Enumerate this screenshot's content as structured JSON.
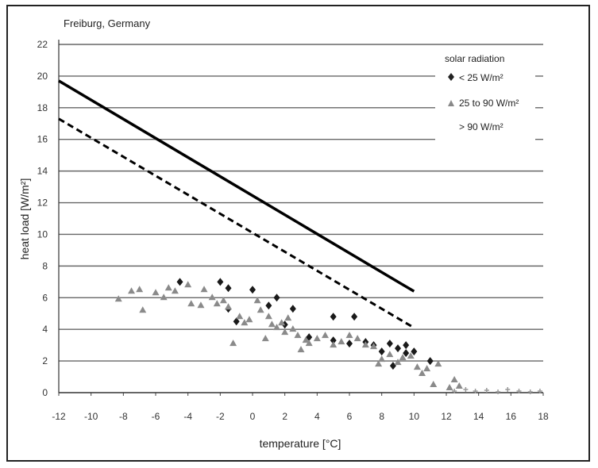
{
  "chart_data": {
    "type": "scatter",
    "title": "Freiburg, Germany",
    "xlabel": "temperature [°C]",
    "ylabel": "heat load [W/m²]",
    "xlim": [
      -12,
      18
    ],
    "ylim": [
      0,
      22
    ],
    "x_ticks": [
      "-12",
      "-10",
      "-8",
      "-6",
      "-4",
      "-2",
      "0",
      "2",
      "4",
      "6",
      "8",
      "10",
      "12",
      "14",
      "16",
      "18"
    ],
    "y_ticks": [
      "0",
      "2",
      "4",
      "6",
      "8",
      "10",
      "12",
      "14",
      "16",
      "18",
      "20",
      "22"
    ],
    "grid": "horizontal",
    "legend": {
      "title": "solar radiation",
      "placement": "top-right",
      "entries": [
        "< 25 W/m²",
        "25 to 90 W/m²",
        "> 90 W/m²"
      ]
    },
    "lines": [
      {
        "style": "solid",
        "x": [
          -12,
          10
        ],
        "y": [
          19.7,
          6.4
        ]
      },
      {
        "style": "dashed",
        "x": [
          -12,
          10
        ],
        "y": [
          17.3,
          4.1
        ]
      }
    ],
    "series": [
      {
        "name": "< 25 W/m²",
        "marker": "diamond",
        "points": [
          [
            -4.5,
            7.0
          ],
          [
            -2.0,
            7.0
          ],
          [
            -1.5,
            6.6
          ],
          [
            0,
            6.5
          ],
          [
            -1.5,
            5.3
          ],
          [
            -1.0,
            4.5
          ],
          [
            1.0,
            5.5
          ],
          [
            1.5,
            6.0
          ],
          [
            2.5,
            5.3
          ],
          [
            2.0,
            4.3
          ],
          [
            3.5,
            3.5
          ],
          [
            5.0,
            4.8
          ],
          [
            6.3,
            4.8
          ],
          [
            5.0,
            3.3
          ],
          [
            6.0,
            3.1
          ],
          [
            7.5,
            3.0
          ],
          [
            8.5,
            3.1
          ],
          [
            8.0,
            2.6
          ],
          [
            9.0,
            2.8
          ],
          [
            9.5,
            2.5
          ],
          [
            10.0,
            2.6
          ],
          [
            11.0,
            2.0
          ],
          [
            8.7,
            1.7
          ],
          [
            9.5,
            3.0
          ],
          [
            7.0,
            3.2
          ]
        ]
      },
      {
        "name": "25 to 90 W/m²",
        "marker": "triangle",
        "points": [
          [
            -8.3,
            5.9
          ],
          [
            -7.5,
            6.4
          ],
          [
            -7.0,
            6.5
          ],
          [
            -6.8,
            5.2
          ],
          [
            -6.0,
            6.3
          ],
          [
            -5.5,
            6.0
          ],
          [
            -5.2,
            6.6
          ],
          [
            -4.8,
            6.4
          ],
          [
            -4.0,
            6.8
          ],
          [
            -3.8,
            5.6
          ],
          [
            -3.2,
            5.5
          ],
          [
            -3.0,
            6.5
          ],
          [
            -2.5,
            6.0
          ],
          [
            -2.2,
            5.6
          ],
          [
            -1.8,
            5.8
          ],
          [
            -1.5,
            5.4
          ],
          [
            -1.2,
            3.1
          ],
          [
            -0.8,
            4.8
          ],
          [
            -0.5,
            4.4
          ],
          [
            -0.2,
            4.6
          ],
          [
            0.3,
            5.8
          ],
          [
            0.5,
            5.2
          ],
          [
            0.8,
            3.4
          ],
          [
            1.0,
            4.8
          ],
          [
            1.2,
            4.3
          ],
          [
            1.5,
            4.1
          ],
          [
            1.8,
            4.4
          ],
          [
            2.0,
            3.8
          ],
          [
            2.2,
            4.7
          ],
          [
            2.5,
            4.0
          ],
          [
            2.8,
            3.6
          ],
          [
            3.0,
            2.7
          ],
          [
            3.3,
            3.3
          ],
          [
            3.5,
            3.1
          ],
          [
            4.0,
            3.4
          ],
          [
            4.5,
            3.6
          ],
          [
            5.0,
            3.0
          ],
          [
            5.5,
            3.2
          ],
          [
            6.0,
            3.6
          ],
          [
            6.5,
            3.4
          ],
          [
            7.0,
            3.0
          ],
          [
            7.5,
            2.9
          ],
          [
            7.8,
            1.8
          ],
          [
            8.0,
            2.1
          ],
          [
            8.5,
            2.4
          ],
          [
            9.0,
            1.9
          ],
          [
            9.3,
            2.2
          ],
          [
            9.8,
            2.3
          ],
          [
            10.2,
            1.6
          ],
          [
            10.5,
            1.2
          ],
          [
            10.8,
            1.5
          ],
          [
            11.2,
            0.5
          ],
          [
            11.5,
            1.8
          ],
          [
            12.2,
            0.3
          ],
          [
            12.5,
            0.8
          ],
          [
            12.8,
            0.4
          ]
        ]
      },
      {
        "name": "> 90 W/m²",
        "marker": "cross",
        "points": [
          [
            12.5,
            0.1
          ],
          [
            13.2,
            0.2
          ],
          [
            13.8,
            0.1
          ],
          [
            14.5,
            0.15
          ],
          [
            15.2,
            0.05
          ],
          [
            15.8,
            0.2
          ],
          [
            16.5,
            0.1
          ],
          [
            17.2,
            0.05
          ],
          [
            17.8,
            0.1
          ]
        ]
      }
    ]
  }
}
